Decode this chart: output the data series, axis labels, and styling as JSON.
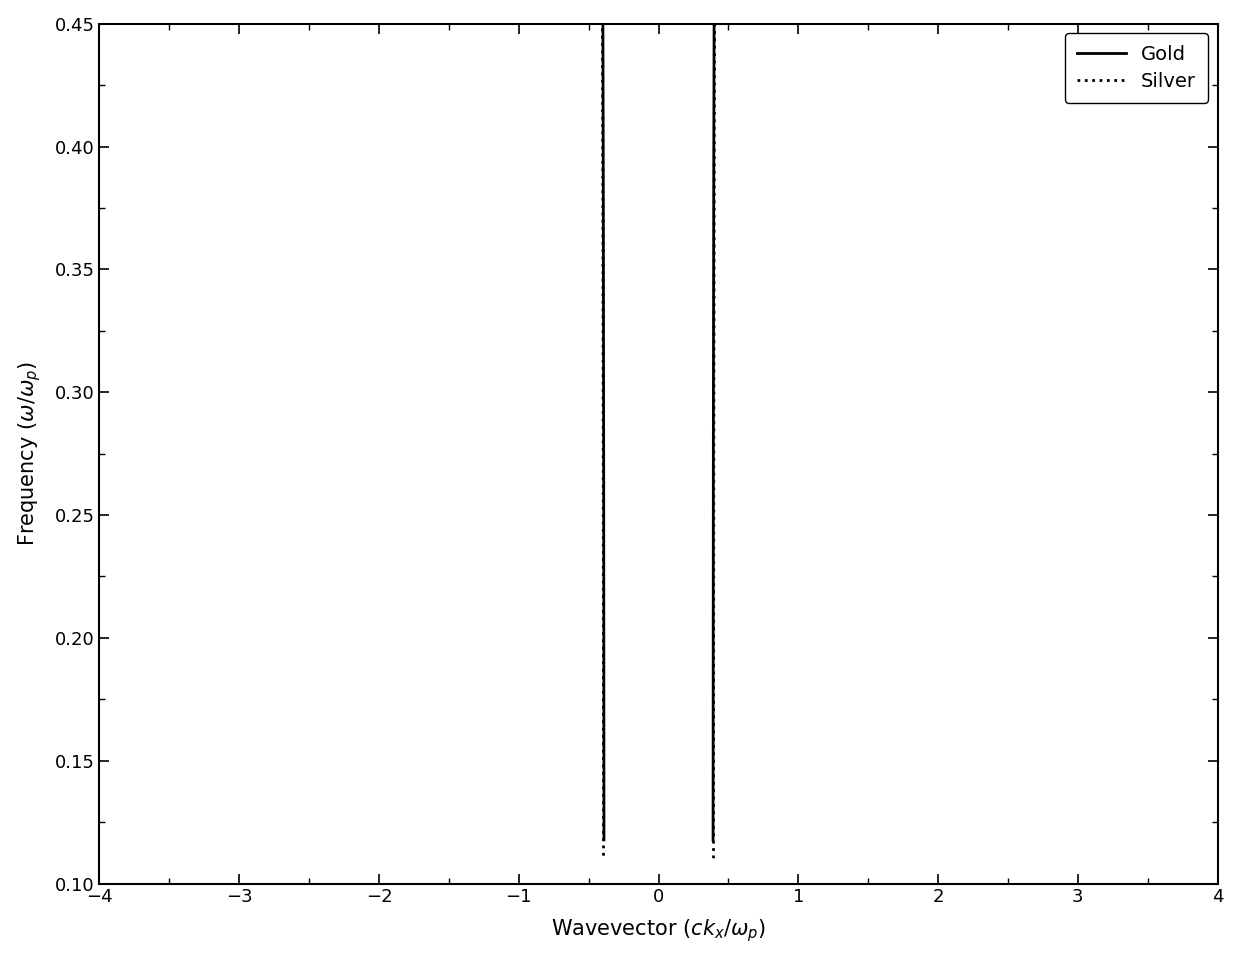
{
  "xlabel": "Wavevector ($ck_x/\\omega_p$)",
  "ylabel": "Frequency ($\\omega/\\omega_p$)",
  "xlim": [
    -4,
    4
  ],
  "ylim": [
    0.1,
    0.45
  ],
  "yticks": [
    0.1,
    0.15,
    0.2,
    0.25,
    0.3,
    0.35,
    0.4,
    0.45
  ],
  "xticks": [
    -4,
    -3,
    -2,
    -1,
    0,
    1,
    2,
    3,
    4
  ],
  "legend_labels": [
    "Gold",
    "Silver"
  ],
  "line_color": "#000000",
  "background_color": "#ffffff",
  "eps_d_gold": 0.152,
  "eps_d_silver": 0.1545,
  "figsize": [
    12.4,
    9.61
  ],
  "dpi": 100,
  "linewidth": 2.0
}
